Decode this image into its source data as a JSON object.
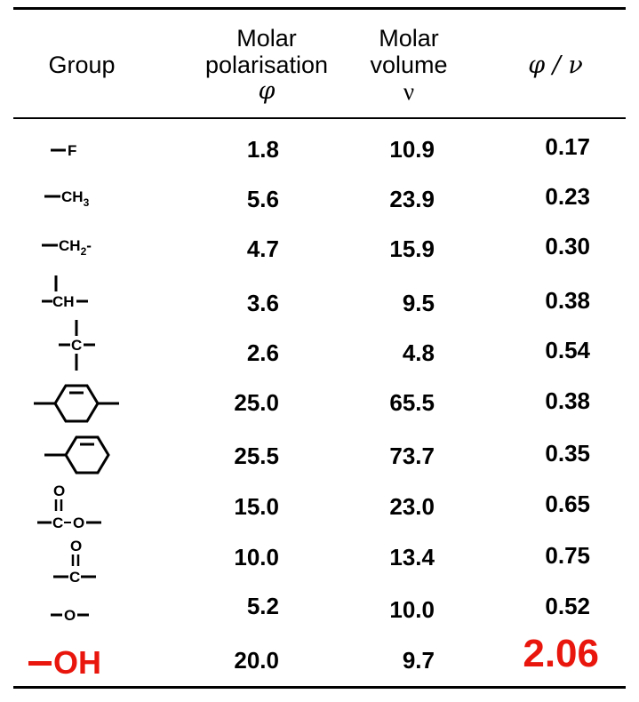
{
  "header": {
    "group": "Group",
    "polar_line1": "Molar",
    "polar_line2": "polarisation",
    "polar_sym": "φ",
    "vol_line1": "Molar",
    "vol_line2": "volume",
    "vol_sym": "ν",
    "ratio": "φ / ν"
  },
  "rows": [
    {
      "group": "—F",
      "label": "F",
      "phi": "1.8",
      "nu": "10.9",
      "ratio": "0.17"
    },
    {
      "group": "—CH3",
      "label": "CH",
      "subscript": "3",
      "phi": "5.6",
      "nu": "23.9",
      "ratio": "0.23"
    },
    {
      "group": "—CH2-",
      "label": "CH",
      "subscript": "2",
      "suffix": "-",
      "phi": "4.7",
      "nu": "15.9",
      "ratio": "0.30"
    },
    {
      "group": "—CH—",
      "label": "CH",
      "phi": "3.6",
      "nu": "9.5",
      "ratio": "0.38"
    },
    {
      "group": "—C—",
      "label": "C",
      "phi": "2.6",
      "nu": "4.8",
      "ratio": "0.54"
    },
    {
      "group": "p-phenylene",
      "phi": "25.0",
      "nu": "65.5",
      "ratio": "0.38"
    },
    {
      "group": "phenyl",
      "phi": "25.5",
      "nu": "73.7",
      "ratio": "0.35"
    },
    {
      "group": "ester",
      "label_c": "C",
      "label_o": "O",
      "label_o_top": "O",
      "phi": "15.0",
      "nu": "23.0",
      "ratio": "0.65"
    },
    {
      "group": "carbonyl",
      "label_c": "C",
      "label_o_top": "O",
      "phi": "10.0",
      "nu": "13.4",
      "ratio": "0.75"
    },
    {
      "group": "ether",
      "label_o": "O",
      "phi": "5.2",
      "nu": "10.0",
      "ratio": "0.52"
    },
    {
      "group": "—OH",
      "label": "OH",
      "phi": "20.0",
      "nu": "9.7",
      "ratio": "2.06"
    }
  ],
  "colors": {
    "highlight": "#e8160c",
    "text": "#000000"
  }
}
